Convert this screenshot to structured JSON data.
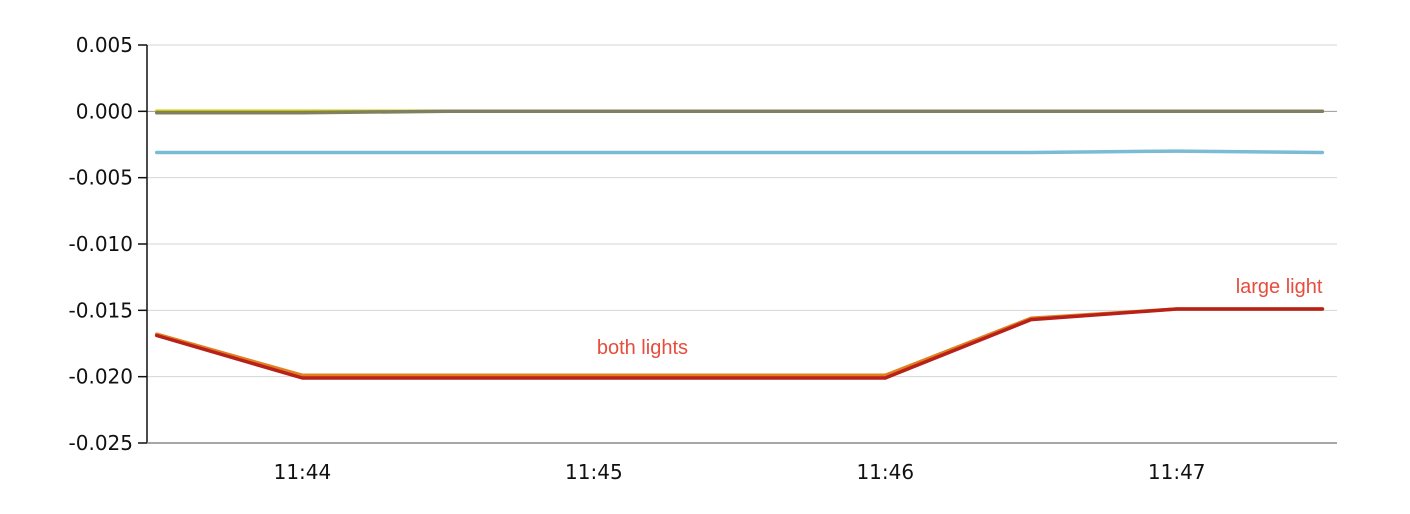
{
  "chart_data": {
    "type": "line",
    "title": "",
    "xlabel": "",
    "ylabel": "",
    "x": [
      "11:43:30",
      "11:44:00",
      "11:44:30",
      "11:45:00",
      "11:45:30",
      "11:46:00",
      "11:46:30",
      "11:47:00",
      "11:47:30"
    ],
    "xlim": [
      "11:43:28",
      "11:47:33"
    ],
    "x_ticks": [
      "11:44",
      "11:45",
      "11:46",
      "11:47"
    ],
    "ylim": [
      -0.025,
      0.005
    ],
    "y_ticks": [
      "0.005",
      "0.000",
      "-0.005",
      "-0.010",
      "-0.015",
      "-0.020",
      "-0.025"
    ],
    "grid": true,
    "series": [
      {
        "color": "#c8c800",
        "values": [
          0.0,
          0.0,
          0.0,
          0.0,
          0.0,
          0.0,
          0.0,
          0.0,
          0.0
        ]
      },
      {
        "color": "#808060",
        "values": [
          -0.0001,
          -0.0001,
          0.0,
          0.0,
          0.0,
          0.0,
          0.0,
          0.0,
          0.0
        ]
      },
      {
        "color": "#7abcd6",
        "values": [
          -0.0031,
          -0.0031,
          -0.0031,
          -0.0031,
          -0.0031,
          -0.0031,
          -0.0031,
          -0.003,
          -0.0031
        ]
      },
      {
        "color": "#e08020",
        "values": [
          -0.0168,
          -0.0199,
          -0.0199,
          -0.0199,
          -0.0199,
          -0.0199,
          -0.0156,
          -0.0149,
          -0.0149
        ]
      },
      {
        "color": "#b8201a",
        "values": [
          -0.0169,
          -0.0201,
          -0.0201,
          -0.0201,
          -0.0201,
          -0.0201,
          -0.0157,
          -0.0149,
          -0.0149
        ]
      }
    ],
    "annotations": [
      {
        "text": "both lights",
        "x": "11:45:10",
        "y": -0.0183,
        "color": "#e74c3c"
      },
      {
        "text": "large light",
        "x": "11:47:30",
        "y": -0.0137,
        "color": "#e74c3c"
      }
    ]
  }
}
